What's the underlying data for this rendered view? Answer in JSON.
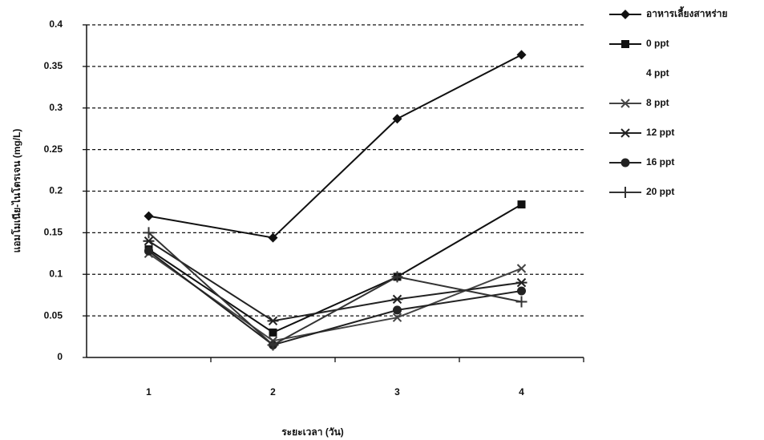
{
  "chart_data": {
    "type": "line",
    "x_label": "ระยะเวลา (วัน)",
    "y_label": "แอมโมเนีย-ไนโตรเจน (mg/L)",
    "categories": [
      "1",
      "2",
      "3",
      "4"
    ],
    "ylim": [
      0,
      0.4
    ],
    "yticks": [
      0,
      0.05,
      0.1,
      0.15,
      0.2,
      0.25,
      0.3,
      0.35,
      0.4
    ],
    "grid": true,
    "legend": "right",
    "series": [
      {
        "name": "อาหารเลี้ยงสาหร่าย",
        "color": "#111111",
        "marker": "diamond",
        "values": [
          0.17,
          0.144,
          0.287,
          0.364
        ]
      },
      {
        "name": "0 ppt",
        "color": "#111111",
        "marker": "square",
        "values": [
          0.13,
          0.03,
          0.097,
          0.184
        ]
      },
      {
        "name": "4 ppt",
        "color": "#ffffff",
        "marker": "none",
        "values": [
          null,
          null,
          null,
          null
        ]
      },
      {
        "name": "8 ppt",
        "color": "#444444",
        "marker": "x",
        "values": [
          0.125,
          0.02,
          0.048,
          0.107
        ]
      },
      {
        "name": "12 ppt",
        "color": "#222222",
        "marker": "asterisk",
        "values": [
          0.14,
          0.044,
          0.07,
          0.09
        ]
      },
      {
        "name": "16 ppt",
        "color": "#222222",
        "marker": "circle",
        "values": [
          0.128,
          0.015,
          0.057,
          0.08
        ]
      },
      {
        "name": "20 ppt",
        "color": "#333333",
        "marker": "plus",
        "values": [
          0.15,
          0.015,
          0.097,
          0.067
        ]
      }
    ]
  }
}
